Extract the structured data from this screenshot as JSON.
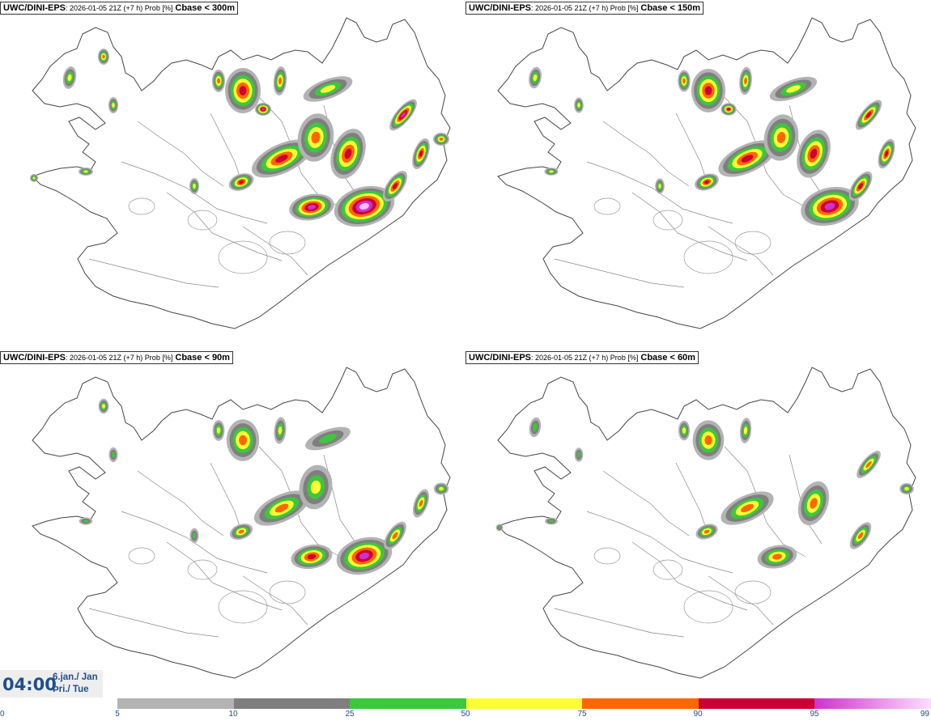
{
  "panels": [
    {
      "model": "UWC/DINI-EPS",
      "meta": ": 2026-01-05 21Z (+7 h) Prob [%]",
      "var": "Cbase < 300m",
      "map_name": "iceland-map-300"
    },
    {
      "model": "UWC/DINI-EPS",
      "meta": ": 2026-01-05 21Z (+7 h) Prob [%]",
      "var": "Cbase < 150m",
      "map_name": "iceland-map-150"
    },
    {
      "model": "UWC/DINI-EPS",
      "meta": ": 2026-01-05 21Z (+7 h) Prob [%]",
      "var": "Cbase < 90m",
      "map_name": "iceland-map-90"
    },
    {
      "model": "UWC/DINI-EPS",
      "meta": ": 2026-01-05 21Z (+7 h) Prob [%]",
      "var": "Cbase < 60m",
      "map_name": "iceland-map-60"
    }
  ],
  "time": {
    "clock": "04:00",
    "date_line": "6.jan./ Jan",
    "day_line": "Þri./ Tue"
  },
  "legend": {
    "ticks": [
      "0",
      "5",
      "10",
      "25",
      "50",
      "75",
      "90",
      "95",
      "99"
    ],
    "colors": [
      "#b3b3b3",
      "#7f7f7f",
      "#3cc83c",
      "#ffff33",
      "#ff6600",
      "#cc0033",
      "#cc33cc"
    ],
    "last_color_end": "#ffddff"
  }
}
